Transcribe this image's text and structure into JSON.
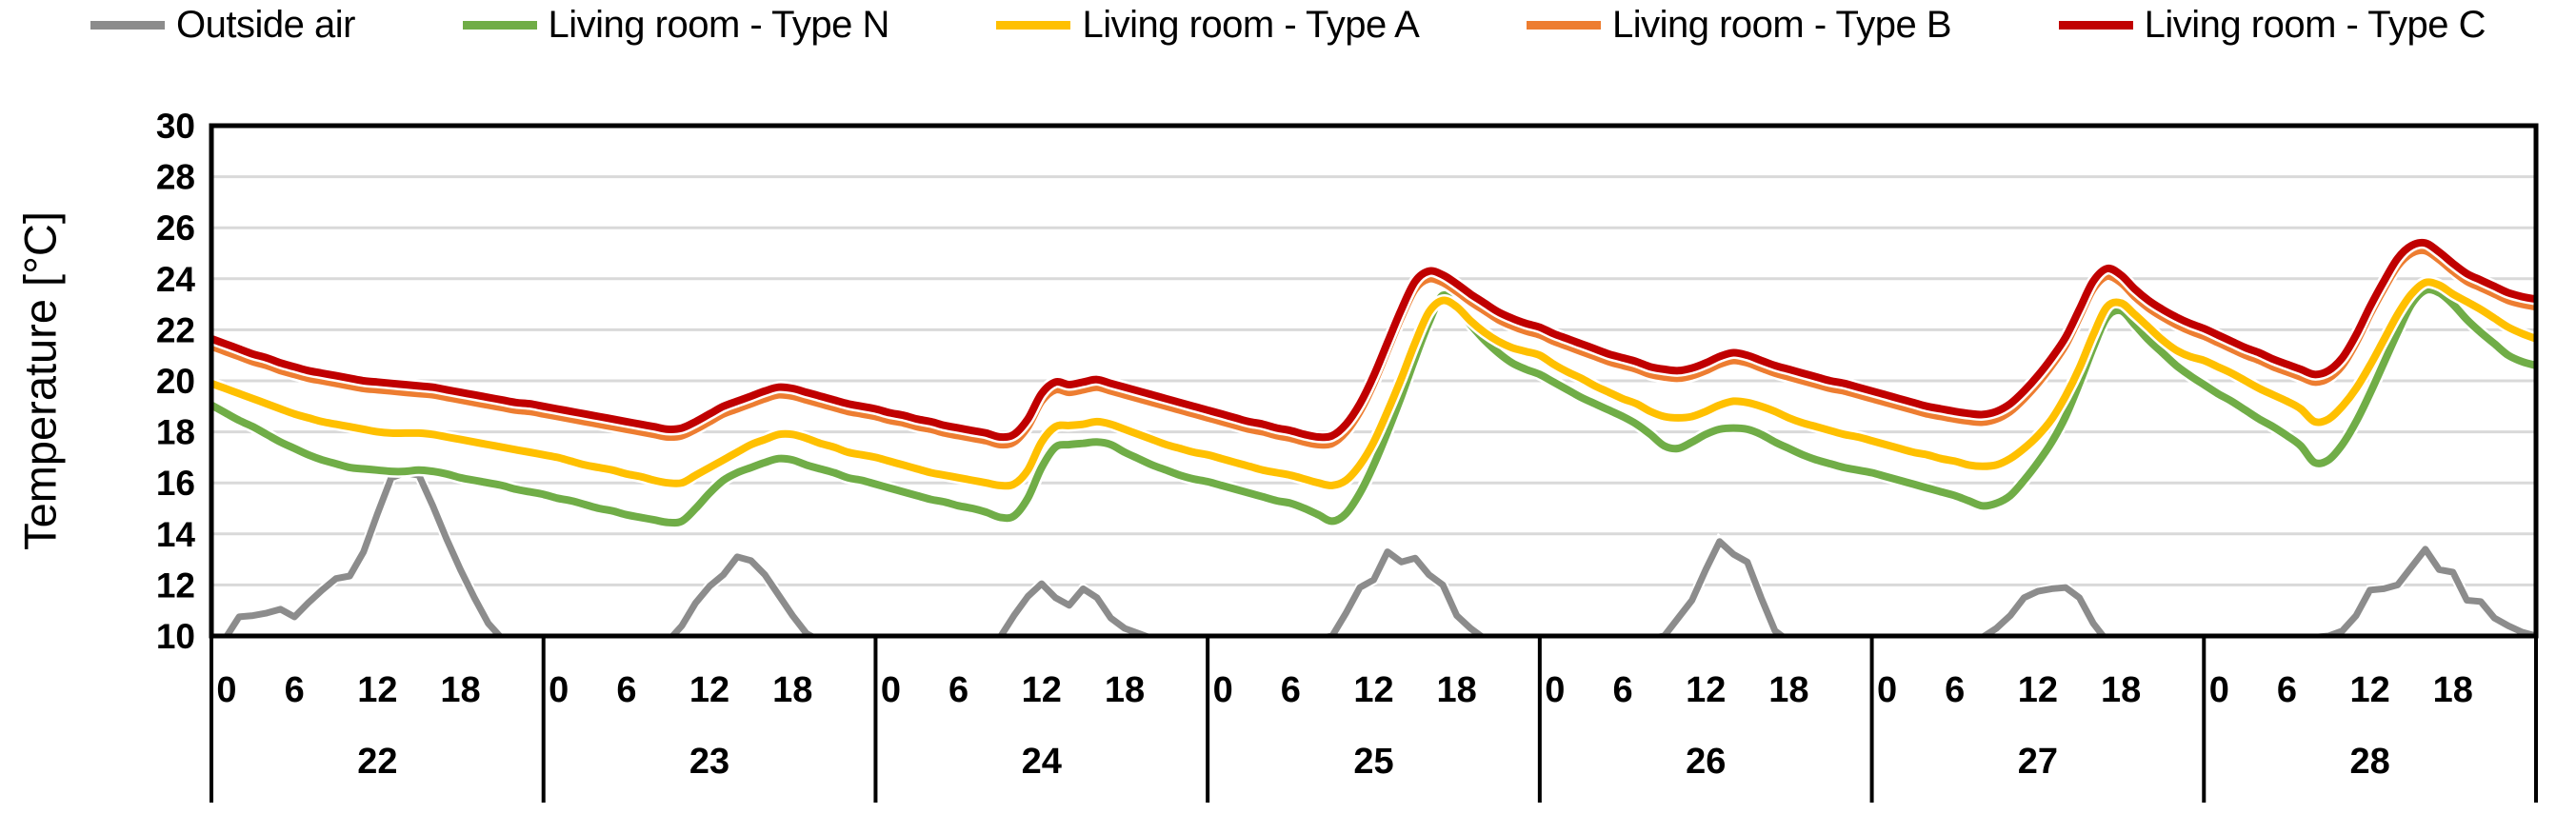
{
  "window": {
    "background": "#ffffff"
  },
  "legend": {
    "items": [
      {
        "label": "Outside air",
        "color": "#8c8c8c"
      },
      {
        "label": "Living room - Type N",
        "color": "#70ad47"
      },
      {
        "label": "Living room - Type A",
        "color": "#ffc000"
      },
      {
        "label": "Living room - Type B",
        "color": "#ed7d31"
      },
      {
        "label": "Living room - Type C",
        "color": "#c00000"
      }
    ]
  },
  "axes": {
    "grid_color": "#d9d9d9",
    "border_color": "#000000",
    "tick_color": "#000000"
  },
  "chart_data": {
    "type": "line",
    "title": "",
    "xlabel": "",
    "ylabel": "Temperature [°C]",
    "ylim": [
      10,
      30
    ],
    "y_ticks": [
      30,
      28,
      26,
      24,
      22,
      20,
      18,
      16,
      14,
      12,
      10
    ],
    "x_days": [
      "22",
      "23",
      "24",
      "25",
      "26",
      "27",
      "28"
    ],
    "hour_ticks": [
      "0",
      "6",
      "12",
      "18"
    ],
    "hours_per_day": 24,
    "grid": "horizontal",
    "legend_position": "top",
    "series": [
      {
        "name": "Outside air",
        "color": "#8c8c8c",
        "smooth": false,
        "values": [
          9.5,
          9.9,
          10.75,
          10.8,
          10.9,
          11.05,
          10.75,
          11.3,
          11.8,
          12.25,
          12.35,
          13.3,
          14.8,
          16.2,
          16.4,
          16.3,
          15.1,
          13.8,
          12.6,
          11.5,
          10.5,
          9.9,
          9.7,
          9.6,
          9.5,
          9.45,
          9.4,
          9.45,
          9.5,
          9.55,
          9.6,
          9.65,
          9.7,
          9.8,
          10.4,
          11.3,
          11.95,
          12.4,
          13.1,
          12.95,
          12.4,
          11.6,
          10.8,
          10.1,
          9.8,
          9.7,
          9.6,
          9.65,
          9.7,
          9.65,
          9.6,
          9.65,
          9.7,
          9.7,
          9.75,
          9.8,
          9.85,
          9.95,
          10.8,
          11.55,
          12.05,
          11.5,
          11.2,
          11.85,
          11.5,
          10.7,
          10.3,
          10.1,
          9.9,
          9.85,
          9.8,
          9.85,
          9.9,
          9.85,
          9.8,
          9.85,
          9.9,
          9.9,
          9.9,
          9.9,
          9.9,
          10.0,
          10.9,
          11.9,
          12.2,
          13.3,
          12.9,
          13.05,
          12.4,
          12.0,
          10.8,
          10.3,
          9.9,
          9.85,
          9.8,
          9.8,
          9.8,
          9.75,
          9.7,
          9.75,
          9.8,
          9.8,
          9.85,
          9.9,
          9.9,
          10.0,
          10.7,
          11.4,
          12.6,
          13.7,
          13.2,
          12.9,
          11.5,
          10.2,
          9.8,
          9.7,
          9.65,
          9.6,
          9.65,
          9.7,
          9.7,
          9.65,
          9.6,
          9.7,
          9.7,
          9.75,
          9.8,
          9.85,
          9.95,
          10.3,
          10.8,
          11.5,
          11.75,
          11.85,
          11.9,
          11.5,
          10.5,
          9.8,
          9.7,
          9.65,
          9.6,
          9.6,
          9.7,
          9.75,
          9.8,
          9.75,
          9.7,
          9.8,
          9.8,
          9.85,
          9.9,
          9.9,
          9.95,
          10.0,
          10.2,
          10.8,
          11.8,
          11.85,
          12.0,
          12.7,
          13.4,
          12.6,
          12.5,
          11.4,
          11.35,
          10.7,
          10.4,
          10.15,
          10.0
        ]
      },
      {
        "name": "Living room - Type N",
        "color": "#70ad47",
        "smooth": true,
        "values": [
          19.05,
          18.75,
          18.45,
          18.2,
          17.9,
          17.6,
          17.35,
          17.1,
          16.9,
          16.75,
          16.6,
          16.55,
          16.5,
          16.45,
          16.45,
          16.5,
          16.45,
          16.35,
          16.2,
          16.1,
          16.0,
          15.9,
          15.75,
          15.65,
          15.55,
          15.4,
          15.3,
          15.15,
          15.0,
          14.9,
          14.75,
          14.65,
          14.55,
          14.45,
          14.5,
          15.0,
          15.6,
          16.1,
          16.4,
          16.6,
          16.8,
          16.95,
          16.9,
          16.7,
          16.55,
          16.4,
          16.2,
          16.1,
          15.95,
          15.8,
          15.65,
          15.5,
          15.35,
          15.25,
          15.1,
          15.0,
          14.85,
          14.65,
          14.7,
          15.4,
          16.6,
          17.4,
          17.5,
          17.55,
          17.6,
          17.5,
          17.2,
          16.95,
          16.7,
          16.5,
          16.3,
          16.15,
          16.05,
          15.9,
          15.75,
          15.6,
          15.45,
          15.3,
          15.2,
          15.0,
          14.75,
          14.5,
          14.8,
          15.6,
          16.7,
          18.0,
          19.4,
          20.9,
          22.3,
          23.35,
          22.85,
          22.2,
          21.6,
          21.1,
          20.7,
          20.45,
          20.25,
          19.95,
          19.65,
          19.35,
          19.1,
          18.85,
          18.6,
          18.3,
          17.9,
          17.45,
          17.35,
          17.6,
          17.9,
          18.1,
          18.15,
          18.1,
          17.9,
          17.6,
          17.35,
          17.1,
          16.9,
          16.75,
          16.6,
          16.5,
          16.4,
          16.25,
          16.1,
          15.95,
          15.8,
          15.65,
          15.5,
          15.3,
          15.1,
          15.2,
          15.5,
          16.1,
          16.8,
          17.6,
          18.6,
          19.9,
          21.3,
          22.5,
          22.75,
          22.2,
          21.6,
          21.1,
          20.6,
          20.2,
          19.85,
          19.5,
          19.2,
          18.85,
          18.5,
          18.2,
          17.85,
          17.45,
          16.8,
          16.9,
          17.5,
          18.4,
          19.5,
          20.7,
          21.9,
          23.0,
          23.55,
          23.45,
          23.0,
          22.4,
          21.9,
          21.45,
          21.0,
          20.75,
          20.6
        ]
      },
      {
        "name": "Living room - Type A",
        "color": "#ffc000",
        "smooth": true,
        "values": [
          19.9,
          19.7,
          19.5,
          19.3,
          19.1,
          18.9,
          18.7,
          18.55,
          18.4,
          18.3,
          18.2,
          18.1,
          18.0,
          17.95,
          17.95,
          17.95,
          17.9,
          17.8,
          17.7,
          17.6,
          17.5,
          17.4,
          17.3,
          17.2,
          17.1,
          17.0,
          16.85,
          16.7,
          16.6,
          16.5,
          16.35,
          16.25,
          16.1,
          16.0,
          16.0,
          16.3,
          16.6,
          16.9,
          17.2,
          17.5,
          17.7,
          17.9,
          17.9,
          17.75,
          17.55,
          17.4,
          17.2,
          17.1,
          17.0,
          16.85,
          16.7,
          16.55,
          16.4,
          16.3,
          16.2,
          16.1,
          16.0,
          15.9,
          15.95,
          16.5,
          17.6,
          18.2,
          18.25,
          18.3,
          18.4,
          18.3,
          18.1,
          17.9,
          17.7,
          17.5,
          17.35,
          17.2,
          17.1,
          16.95,
          16.8,
          16.65,
          16.5,
          16.4,
          16.3,
          16.15,
          16.0,
          15.9,
          16.1,
          16.7,
          17.6,
          18.8,
          20.1,
          21.5,
          22.7,
          23.15,
          22.9,
          22.35,
          21.9,
          21.55,
          21.3,
          21.15,
          21.0,
          20.65,
          20.35,
          20.1,
          19.8,
          19.55,
          19.3,
          19.1,
          18.8,
          18.6,
          18.55,
          18.6,
          18.8,
          19.05,
          19.2,
          19.15,
          19.0,
          18.8,
          18.55,
          18.35,
          18.2,
          18.05,
          17.9,
          17.8,
          17.65,
          17.5,
          17.35,
          17.2,
          17.1,
          16.95,
          16.85,
          16.7,
          16.65,
          16.7,
          16.95,
          17.35,
          17.85,
          18.5,
          19.4,
          20.5,
          21.8,
          22.9,
          23.05,
          22.6,
          22.1,
          21.6,
          21.2,
          20.95,
          20.8,
          20.55,
          20.3,
          20.0,
          19.7,
          19.45,
          19.2,
          18.9,
          18.4,
          18.5,
          19.0,
          19.7,
          20.6,
          21.6,
          22.6,
          23.4,
          23.85,
          23.75,
          23.4,
          23.1,
          22.8,
          22.45,
          22.1,
          21.85,
          21.65
        ]
      },
      {
        "name": "Living room - Type B",
        "color": "#ed7d31",
        "smooth": true,
        "values": [
          21.35,
          21.15,
          20.95,
          20.75,
          20.6,
          20.4,
          20.25,
          20.1,
          20.0,
          19.9,
          19.8,
          19.7,
          19.65,
          19.6,
          19.55,
          19.5,
          19.45,
          19.35,
          19.25,
          19.15,
          19.05,
          18.95,
          18.85,
          18.8,
          18.7,
          18.6,
          18.5,
          18.4,
          18.3,
          18.2,
          18.1,
          18.0,
          17.9,
          17.8,
          17.85,
          18.1,
          18.4,
          18.7,
          18.9,
          19.1,
          19.3,
          19.45,
          19.4,
          19.25,
          19.1,
          18.95,
          18.8,
          18.7,
          18.6,
          18.45,
          18.35,
          18.2,
          18.1,
          17.95,
          17.85,
          17.75,
          17.65,
          17.5,
          17.6,
          18.2,
          19.2,
          19.65,
          19.55,
          19.65,
          19.75,
          19.6,
          19.45,
          19.3,
          19.15,
          19.0,
          18.85,
          18.7,
          18.55,
          18.4,
          18.25,
          18.1,
          18.0,
          17.85,
          17.75,
          17.6,
          17.5,
          17.55,
          18.0,
          18.8,
          19.9,
          21.2,
          22.5,
          23.6,
          24.0,
          23.85,
          23.5,
          23.1,
          22.75,
          22.4,
          22.15,
          21.95,
          21.8,
          21.55,
          21.35,
          21.15,
          20.95,
          20.75,
          20.6,
          20.45,
          20.25,
          20.15,
          20.1,
          20.2,
          20.4,
          20.65,
          20.8,
          20.7,
          20.5,
          20.3,
          20.15,
          20.0,
          19.85,
          19.7,
          19.6,
          19.45,
          19.3,
          19.15,
          19.0,
          18.85,
          18.7,
          18.6,
          18.5,
          18.42,
          18.38,
          18.5,
          18.8,
          19.3,
          19.9,
          20.6,
          21.4,
          22.5,
          23.6,
          24.1,
          23.85,
          23.3,
          22.85,
          22.5,
          22.2,
          21.95,
          21.75,
          21.5,
          21.25,
          21.0,
          20.8,
          20.55,
          20.35,
          20.15,
          19.95,
          20.1,
          20.6,
          21.5,
          22.6,
          23.6,
          24.5,
          25.0,
          25.1,
          24.75,
          24.3,
          23.9,
          23.65,
          23.4,
          23.15,
          23.0,
          22.9
        ]
      },
      {
        "name": "Living room - Type C",
        "color": "#c00000",
        "smooth": true,
        "values": [
          21.65,
          21.45,
          21.25,
          21.05,
          20.9,
          20.7,
          20.55,
          20.4,
          20.3,
          20.2,
          20.1,
          20.0,
          19.95,
          19.9,
          19.85,
          19.8,
          19.75,
          19.65,
          19.55,
          19.45,
          19.35,
          19.25,
          19.15,
          19.1,
          19.0,
          18.9,
          18.8,
          18.7,
          18.6,
          18.5,
          18.4,
          18.3,
          18.2,
          18.1,
          18.15,
          18.4,
          18.7,
          19.0,
          19.2,
          19.4,
          19.6,
          19.75,
          19.7,
          19.55,
          19.4,
          19.25,
          19.1,
          19.0,
          18.9,
          18.75,
          18.65,
          18.5,
          18.4,
          18.25,
          18.15,
          18.05,
          17.95,
          17.8,
          17.9,
          18.5,
          19.5,
          19.95,
          19.85,
          19.95,
          20.05,
          19.9,
          19.75,
          19.6,
          19.45,
          19.3,
          19.15,
          19.0,
          18.85,
          18.7,
          18.55,
          18.4,
          18.3,
          18.15,
          18.05,
          17.9,
          17.8,
          17.85,
          18.3,
          19.1,
          20.2,
          21.5,
          22.8,
          23.9,
          24.3,
          24.15,
          23.8,
          23.4,
          23.05,
          22.7,
          22.45,
          22.25,
          22.1,
          21.85,
          21.65,
          21.45,
          21.25,
          21.05,
          20.9,
          20.75,
          20.55,
          20.45,
          20.4,
          20.5,
          20.7,
          20.95,
          21.1,
          21.0,
          20.8,
          20.6,
          20.45,
          20.3,
          20.15,
          20.0,
          19.9,
          19.75,
          19.6,
          19.45,
          19.3,
          19.15,
          19.0,
          18.9,
          18.8,
          18.72,
          18.68,
          18.8,
          19.1,
          19.6,
          20.2,
          20.9,
          21.7,
          22.8,
          23.9,
          24.4,
          24.15,
          23.6,
          23.15,
          22.8,
          22.5,
          22.25,
          22.05,
          21.8,
          21.55,
          21.3,
          21.1,
          20.85,
          20.65,
          20.45,
          20.25,
          20.4,
          20.9,
          21.8,
          22.9,
          23.9,
          24.8,
          25.3,
          25.4,
          25.05,
          24.6,
          24.2,
          23.95,
          23.7,
          23.45,
          23.3,
          23.2
        ]
      }
    ]
  }
}
